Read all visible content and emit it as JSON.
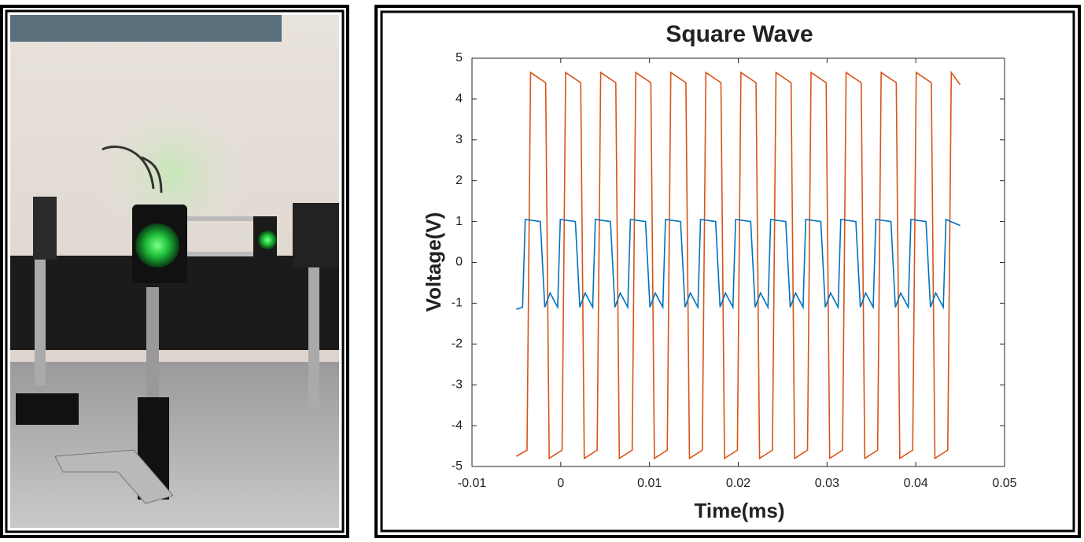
{
  "chart_data": {
    "type": "line",
    "title": "Square Wave",
    "x_label": "Time(ms)",
    "y_label": "Voltage(V)",
    "xlim": [
      -0.01,
      0.05
    ],
    "xticks": [
      -0.01,
      0,
      0.01,
      0.02,
      0.03,
      0.04,
      0.05
    ],
    "ylim": [
      -5,
      5
    ],
    "yticks": [
      -5,
      -4,
      -3,
      -2,
      -1,
      0,
      1,
      2,
      3,
      4,
      5
    ],
    "series": [
      {
        "color": "#d95319",
        "x": [
          -0.005,
          -0.0038,
          -0.0034,
          -0.0017,
          -0.0013,
          0.00015,
          0.00055,
          0.00225,
          0.00265,
          0.0041,
          0.0045,
          0.0062,
          0.0066,
          0.00805,
          0.00845,
          0.01015,
          0.01055,
          0.012,
          0.0124,
          0.0141,
          0.0145,
          0.01595,
          0.01635,
          0.01805,
          0.01845,
          0.0199,
          0.0203,
          0.022,
          0.0224,
          0.02385,
          0.02425,
          0.02595,
          0.02635,
          0.0278,
          0.0282,
          0.0299,
          0.0303,
          0.03175,
          0.03215,
          0.03385,
          0.03425,
          0.0357,
          0.0361,
          0.0378,
          0.0382,
          0.03965,
          0.04005,
          0.04175,
          0.04215,
          0.0436,
          0.044,
          0.045
        ],
        "values": [
          -4.75,
          -4.6,
          4.65,
          4.4,
          -4.8,
          -4.6,
          4.65,
          4.4,
          -4.8,
          -4.6,
          4.65,
          4.4,
          -4.8,
          -4.6,
          4.65,
          4.4,
          -4.8,
          -4.6,
          4.65,
          4.4,
          -4.8,
          -4.6,
          4.65,
          4.4,
          -4.8,
          -4.6,
          4.65,
          4.4,
          -4.8,
          -4.6,
          4.65,
          4.4,
          -4.8,
          -4.6,
          4.65,
          4.4,
          -4.8,
          -4.6,
          4.65,
          4.4,
          -4.8,
          -4.6,
          4.65,
          4.4,
          -4.8,
          -4.6,
          4.65,
          4.4,
          -4.8,
          -4.6,
          4.65,
          4.35
        ]
      },
      {
        "color": "#0072bd",
        "x": [
          -0.005,
          -0.0043,
          -0.004,
          -0.0023,
          -0.0018,
          -0.0012,
          -0.00035,
          -5e-05,
          0.00165,
          0.00215,
          0.00275,
          0.0036,
          0.0039,
          0.0056,
          0.0061,
          0.0067,
          0.00755,
          0.00785,
          0.00955,
          0.01005,
          0.01065,
          0.0115,
          0.0118,
          0.0135,
          0.014,
          0.0146,
          0.01545,
          0.01575,
          0.01745,
          0.01795,
          0.01855,
          0.0194,
          0.0197,
          0.0214,
          0.0219,
          0.0225,
          0.02335,
          0.02365,
          0.02535,
          0.02585,
          0.02645,
          0.0273,
          0.0276,
          0.0293,
          0.0298,
          0.0304,
          0.03125,
          0.03155,
          0.03325,
          0.03375,
          0.03435,
          0.0352,
          0.0355,
          0.0372,
          0.0377,
          0.0383,
          0.03915,
          0.03945,
          0.04115,
          0.04165,
          0.04225,
          0.0431,
          0.0434,
          0.045
        ],
        "values": [
          -1.15,
          -1.1,
          1.05,
          1.0,
          -1.1,
          -0.75,
          -1.1,
          1.05,
          1.0,
          -1.1,
          -0.75,
          -1.1,
          1.05,
          1.0,
          -1.1,
          -0.75,
          -1.1,
          1.05,
          1.0,
          -1.1,
          -0.75,
          -1.1,
          1.05,
          1.0,
          -1.1,
          -0.75,
          -1.1,
          1.05,
          1.0,
          -1.1,
          -0.75,
          -1.1,
          1.05,
          1.0,
          -1.1,
          -0.75,
          -1.1,
          1.05,
          1.0,
          -1.1,
          -0.75,
          -1.1,
          1.05,
          1.0,
          -1.1,
          -0.75,
          -1.1,
          1.05,
          1.0,
          -1.1,
          -0.75,
          -1.1,
          1.05,
          1.0,
          -1.1,
          -0.75,
          -1.1,
          1.05,
          1.0,
          -1.1,
          -0.75,
          -1.1,
          1.05,
          0.9
        ]
      }
    ]
  }
}
